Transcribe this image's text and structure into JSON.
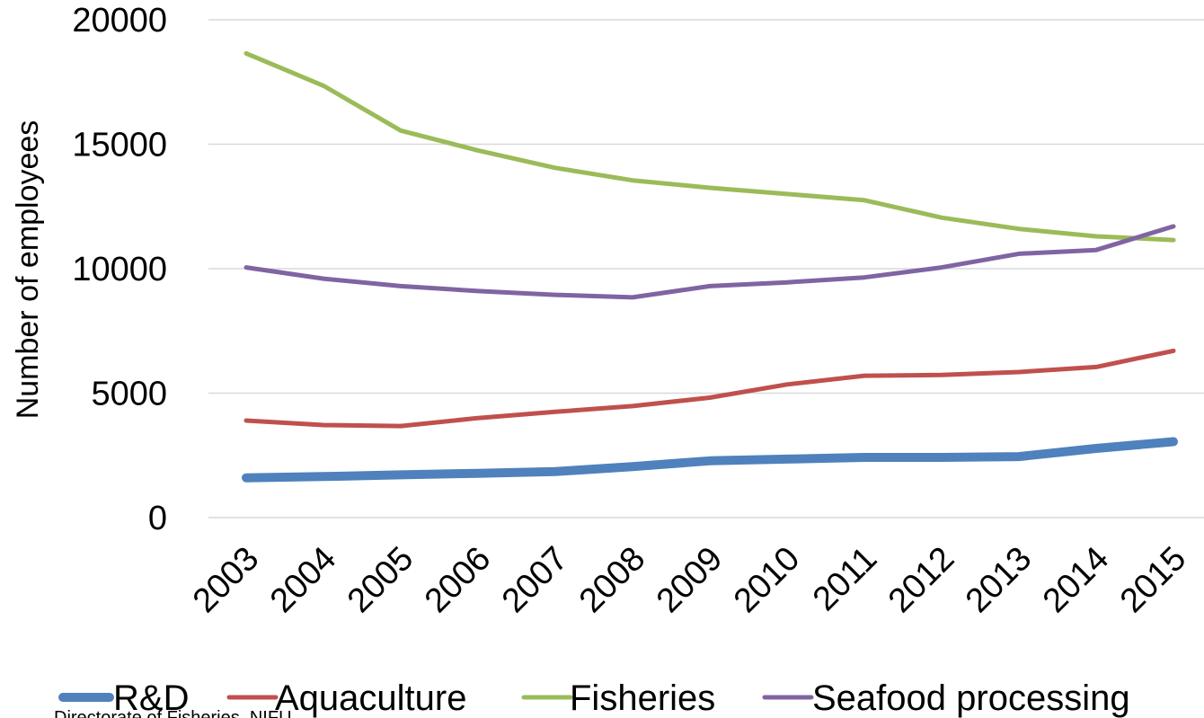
{
  "chart_data": {
    "type": "line",
    "title": "",
    "xlabel": "",
    "ylabel": "Number of employees",
    "ylim": [
      0,
      20000
    ],
    "yticks": [
      0,
      5000,
      10000,
      15000,
      20000
    ],
    "grid": true,
    "legend_position": "bottom",
    "categories": [
      "2003",
      "2004",
      "2005",
      "2006",
      "2007",
      "2008",
      "2009",
      "2010",
      "2011",
      "2012",
      "2013",
      "2014",
      "2015"
    ],
    "series": [
      {
        "name": "R&D",
        "color": "#4f81bd",
        "values": [
          1600,
          1650,
          1720,
          1780,
          1850,
          2050,
          2280,
          2350,
          2420,
          2420,
          2450,
          2780,
          3050
        ]
      },
      {
        "name": "Aquaculture",
        "color": "#c0504d",
        "values": [
          3900,
          3720,
          3680,
          4000,
          4250,
          4480,
          4820,
          5350,
          5700,
          5730,
          5850,
          6050,
          6700
        ]
      },
      {
        "name": "Fisheries",
        "color": "#9bbb59",
        "values": [
          18650,
          17350,
          15550,
          14750,
          14050,
          13550,
          13250,
          13000,
          12750,
          12050,
          11600,
          11300,
          11150
        ]
      },
      {
        "name": "Seafood processing",
        "color": "#8064a2",
        "values": [
          10050,
          9600,
          9300,
          9100,
          8950,
          8850,
          9300,
          9450,
          9650,
          10050,
          10600,
          10750,
          11700
        ]
      }
    ]
  },
  "source_note": "Directorate of Fisheries, NIFU"
}
